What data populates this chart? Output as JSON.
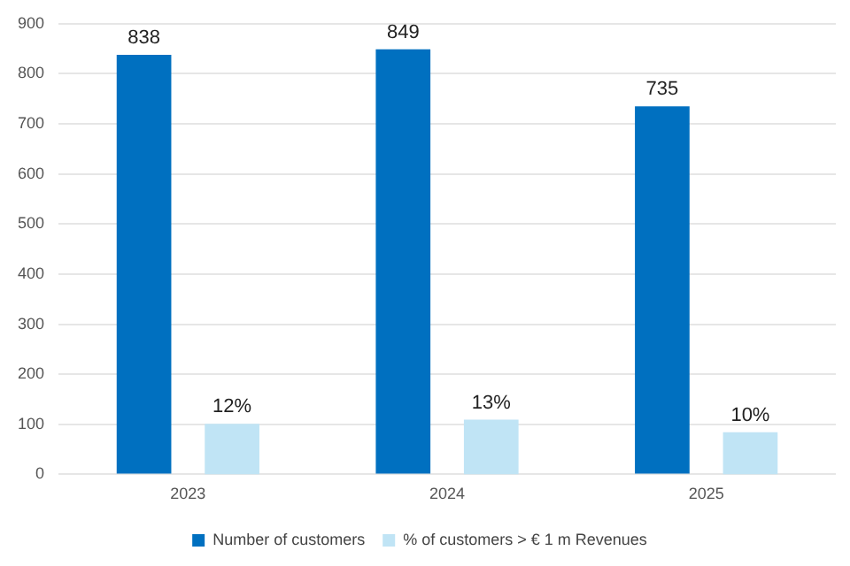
{
  "chart_data": {
    "type": "bar",
    "categories": [
      "2023",
      "2024",
      "2025"
    ],
    "series": [
      {
        "name": "Number of customers",
        "color": "#0070c0",
        "values": [
          838,
          849,
          735
        ],
        "value_labels": [
          "838",
          "849",
          "735"
        ]
      },
      {
        "name": "% of customers > € 1 m Revenues",
        "color": "#c0e4f5",
        "values": [
          12,
          13,
          10
        ],
        "value_labels": [
          "12%",
          "13%",
          "10%"
        ],
        "axis": "y2"
      }
    ],
    "ylim": [
      0,
      900
    ],
    "yticks": [
      0,
      100,
      200,
      300,
      400,
      500,
      600,
      700,
      800,
      900
    ],
    "y2lim": [
      0,
      107
    ],
    "grid": "y",
    "legend": "bottom"
  }
}
